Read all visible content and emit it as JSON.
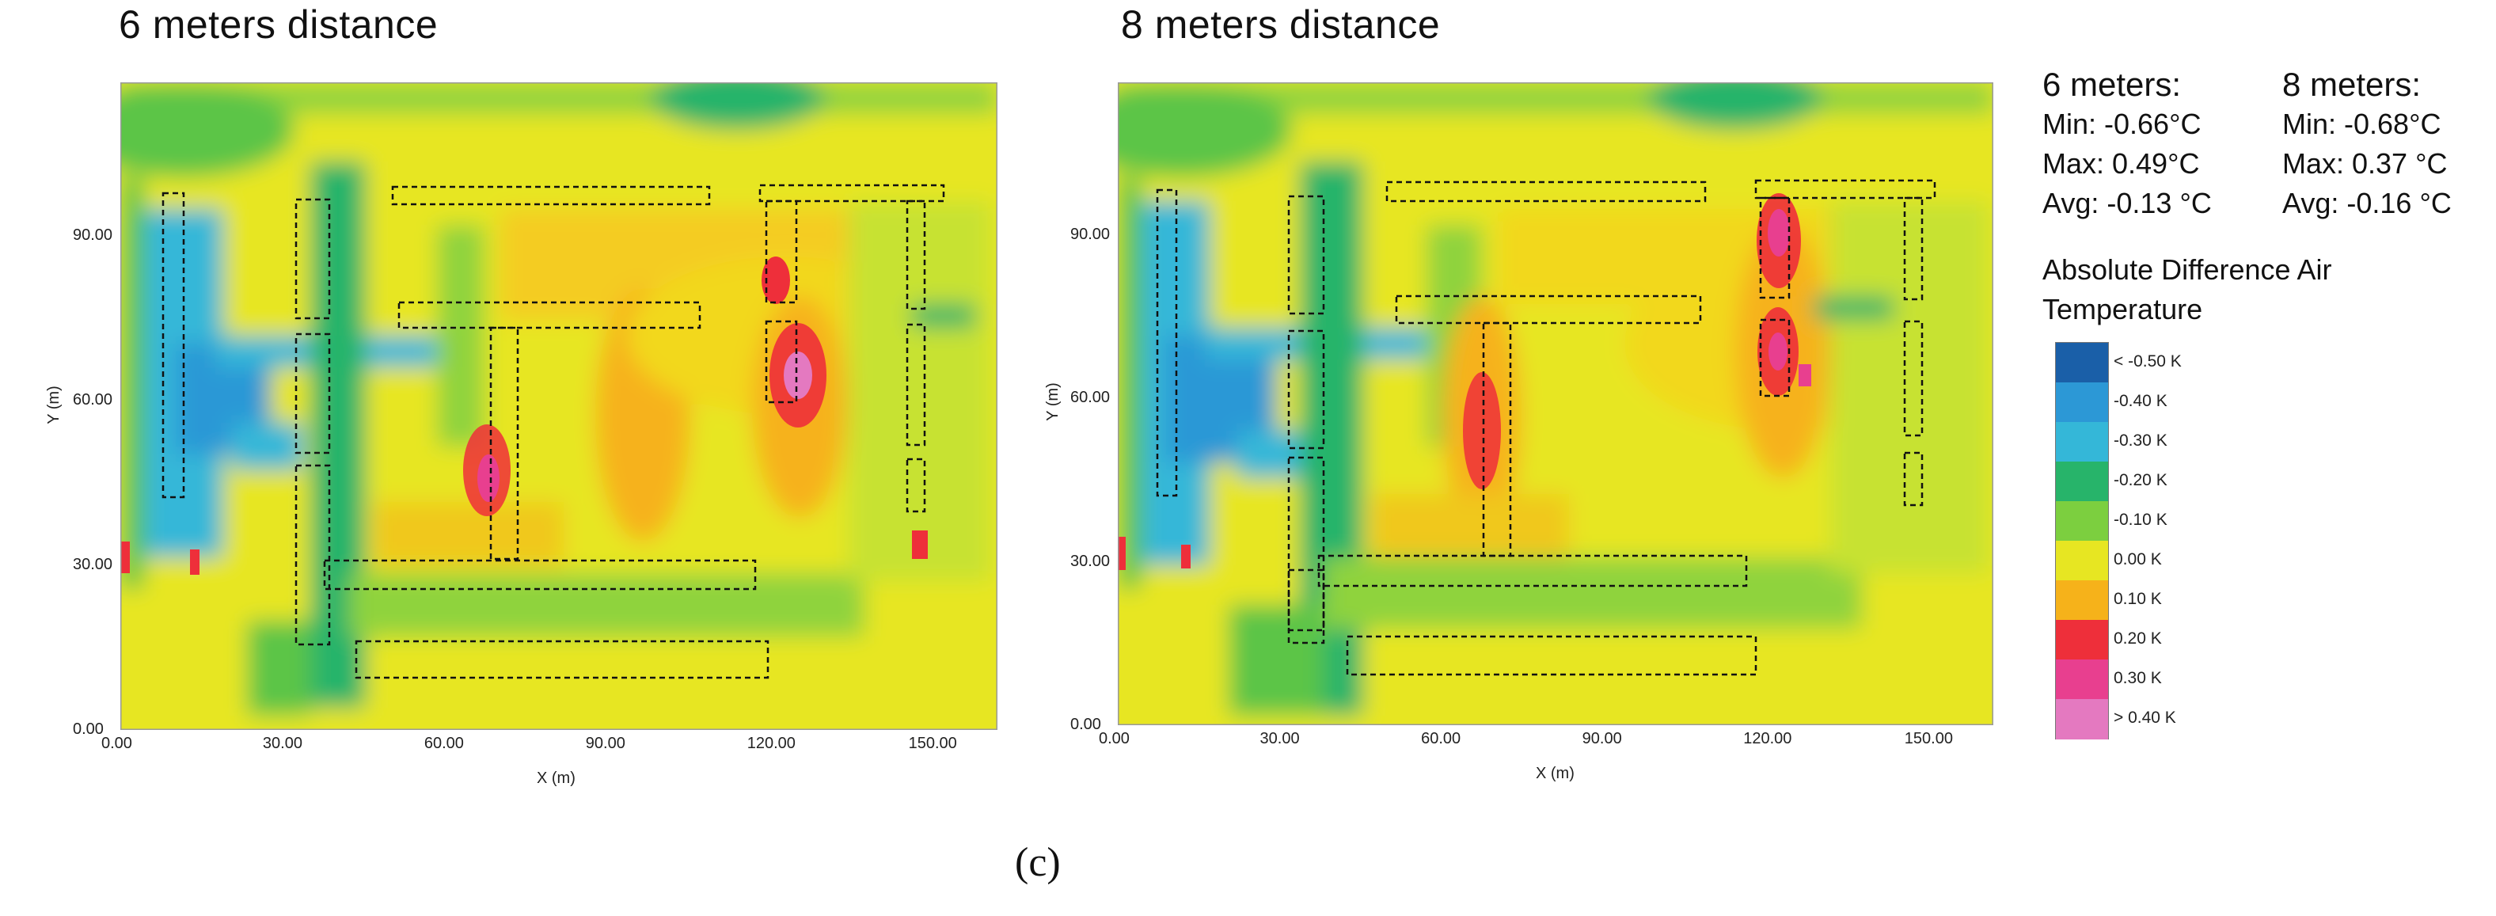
{
  "caption": "(c)",
  "legend": {
    "title_line1": "Absolute Difference Air",
    "title_line2": "Temperature",
    "labels": [
      "< -0.50 K",
      "-0.40 K",
      "-0.30 K",
      "-0.20 K",
      "-0.10 K",
      "0.00 K",
      "0.10 K",
      "0.20 K",
      "0.30 K",
      "> 0.40 K"
    ],
    "colors": [
      "#1a5fa8",
      "#2c98d6",
      "#34b7d8",
      "#27b46a",
      "#7ccf3f",
      "#e7e622",
      "#f6b21a",
      "#ee2f3a",
      "#e83f8f",
      "#e479c0"
    ]
  },
  "stats": [
    {
      "header": "6 meters:",
      "min": "Min: -0.66°C",
      "max": "Max: 0.49°C",
      "avg": "Avg:  -0.13 °C"
    },
    {
      "header": "8 meters:",
      "min": "Min: -0.68°C",
      "max": "Max: 0.37 °C",
      "avg": "Avg:  -0.16 °C"
    }
  ],
  "chart_data": [
    {
      "type": "heatmap",
      "title": "6 meters distance",
      "xlabel": "X (m)",
      "ylabel": "Y (m)",
      "xlim": [
        0,
        163
      ],
      "ylim": [
        0,
        118
      ],
      "xticks": [
        "0.00",
        "30.00",
        "60.00",
        "90.00",
        "120.00",
        "150.00"
      ],
      "yticks": [
        "0.00",
        "30.00",
        "60.00",
        "90.00"
      ],
      "xtick_values": [
        0,
        30,
        60,
        90,
        120,
        150
      ],
      "ytick_values": [
        0,
        30,
        60,
        90
      ]
    },
    {
      "type": "heatmap",
      "title": "8 meters distance",
      "xlabel": "X (m)",
      "ylabel": "Y (m)",
      "xlim": [
        0,
        163
      ],
      "ylim": [
        0,
        118
      ],
      "xticks": [
        "0.00",
        "30.00",
        "60.00",
        "90.00",
        "120.00",
        "150.00"
      ],
      "yticks": [
        "0.00",
        "30.00",
        "60.00",
        "90.00"
      ],
      "xtick_values": [
        0,
        30,
        60,
        90,
        120,
        150
      ],
      "ytick_values": [
        0,
        30,
        60,
        90
      ]
    }
  ]
}
